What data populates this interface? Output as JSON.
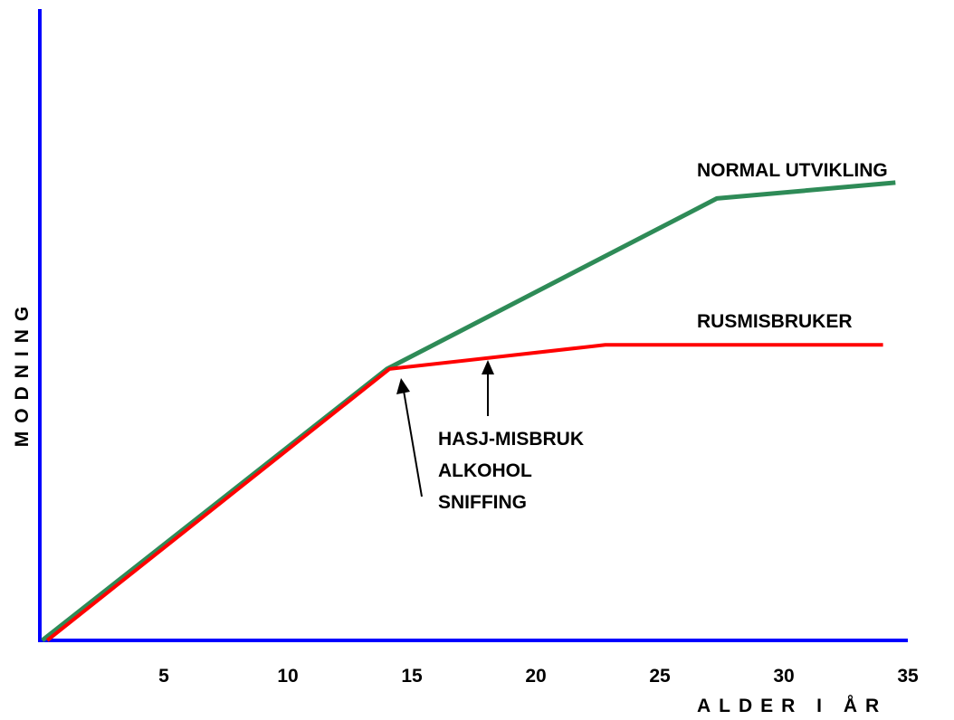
{
  "chart_data": {
    "type": "line",
    "title": "",
    "xlabel": "ALDER I ÅR",
    "ylabel": "MODNING",
    "xlim": [
      0,
      35
    ],
    "ylim": [
      0,
      10
    ],
    "x_ticks": [
      5,
      10,
      15,
      20,
      25,
      30,
      35
    ],
    "grid": false,
    "series": [
      {
        "name": "NORMAL UTVIKLING",
        "color": "#2e8b57",
        "points": [
          [
            0.1,
            0.0
          ],
          [
            14.0,
            4.3
          ],
          [
            27.3,
            7.0
          ],
          [
            34.5,
            7.25
          ]
        ]
      },
      {
        "name": "RUSMISBRUKER",
        "color": "#ff0000",
        "points": [
          [
            0.3,
            0.0
          ],
          [
            14.1,
            4.3
          ],
          [
            22.8,
            4.68
          ],
          [
            34.0,
            4.68
          ]
        ]
      }
    ],
    "annotations": [
      {
        "lines": [
          "HASJ-MISBRUK",
          "ALKOHOL",
          "SNIFFING"
        ]
      }
    ],
    "axis_color": "#0000ff"
  }
}
